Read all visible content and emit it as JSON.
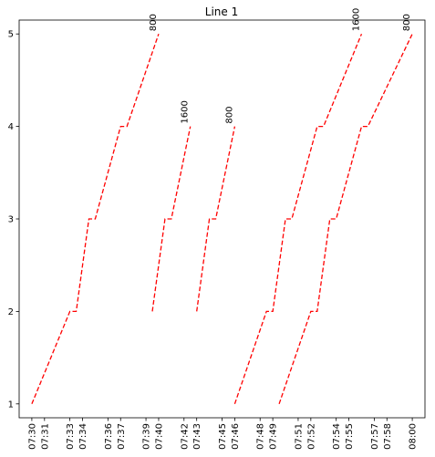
{
  "chart_data": {
    "type": "line",
    "title": "Line 1",
    "xlabel": "",
    "ylabel": "",
    "line_color": "#ff0000",
    "line_style": "dashed",
    "grid": false,
    "xlim": [
      "07:29",
      "08:01"
    ],
    "ylim": [
      0.85,
      5.15
    ],
    "x_ticks": [
      "07:30",
      "07:31",
      "07:33",
      "07:34",
      "07:36",
      "07:37",
      "07:39",
      "07:40",
      "07:42",
      "07:43",
      "07:45",
      "07:46",
      "07:48",
      "07:49",
      "07:51",
      "07:52",
      "07:54",
      "07:55",
      "07:57",
      "07:58",
      "08:00"
    ],
    "y_ticks": [
      1,
      2,
      3,
      4,
      5
    ],
    "series": [
      {
        "label": "800",
        "points": [
          [
            "07:30:00",
            1
          ],
          [
            "07:33:00",
            2
          ],
          [
            "07:33:30",
            2
          ],
          [
            "07:34:30",
            3
          ],
          [
            "07:35:00",
            3
          ],
          [
            "07:37:00",
            4
          ],
          [
            "07:37:30",
            4
          ],
          [
            "07:40:00",
            5
          ]
        ]
      },
      {
        "label": "1600",
        "points": [
          [
            "07:39:30",
            2
          ],
          [
            "07:40:30",
            3
          ],
          [
            "07:41:00",
            3
          ],
          [
            "07:42:30",
            4
          ]
        ]
      },
      {
        "label": "800",
        "points": [
          [
            "07:43:00",
            2
          ],
          [
            "07:44:00",
            3
          ],
          [
            "07:44:30",
            3
          ],
          [
            "07:46:00",
            4
          ]
        ]
      },
      {
        "label": "1600",
        "points": [
          [
            "07:46:00",
            1
          ],
          [
            "07:48:30",
            2
          ],
          [
            "07:49:00",
            2
          ],
          [
            "07:50:00",
            3
          ],
          [
            "07:50:30",
            3
          ],
          [
            "07:52:30",
            4
          ],
          [
            "07:53:00",
            4
          ],
          [
            "07:56:00",
            5
          ]
        ]
      },
      {
        "label": "800",
        "points": [
          [
            "07:49:30",
            1
          ],
          [
            "07:52:00",
            2
          ],
          [
            "07:52:30",
            2
          ],
          [
            "07:53:30",
            3
          ],
          [
            "07:54:00",
            3
          ],
          [
            "07:56:00",
            4
          ],
          [
            "07:56:30",
            4
          ],
          [
            "08:00:00",
            5
          ]
        ]
      }
    ]
  }
}
